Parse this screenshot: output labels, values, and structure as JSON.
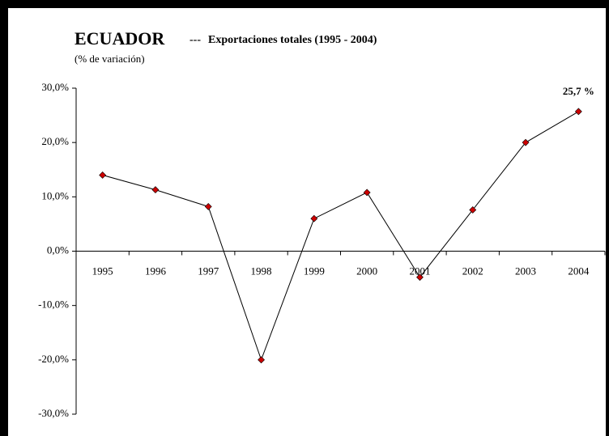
{
  "chart_data": {
    "type": "line",
    "title": [
      "ECUADOR",
      "---",
      "Exportaciones totales (1995 - 2004)"
    ],
    "ylabel": "(% de variación)",
    "categories": [
      "1995",
      "1996",
      "1997",
      "1998",
      "1999",
      "2000",
      "2001",
      "2002",
      "2003",
      "2004"
    ],
    "values": [
      14.0,
      11.3,
      8.2,
      -20.0,
      6.0,
      10.8,
      -4.8,
      7.6,
      20.0,
      25.7
    ],
    "value_labels": [
      null,
      null,
      null,
      null,
      null,
      null,
      null,
      null,
      null,
      "25,7 %"
    ],
    "color": "#000000",
    "marker_color": "#cc0000",
    "ylim": [
      -30,
      30
    ],
    "yticks": [
      {
        "value": 30,
        "label": "30,0%"
      },
      {
        "value": 20,
        "label": "20,0%"
      },
      {
        "value": 10,
        "label": "10,0%"
      },
      {
        "value": 0,
        "label": "0,0%"
      },
      {
        "value": -10,
        "label": "-10,0%"
      },
      {
        "value": -20,
        "label": "-20,0%"
      },
      {
        "value": -30,
        "label": "-30,0%"
      }
    ],
    "grid": false
  }
}
